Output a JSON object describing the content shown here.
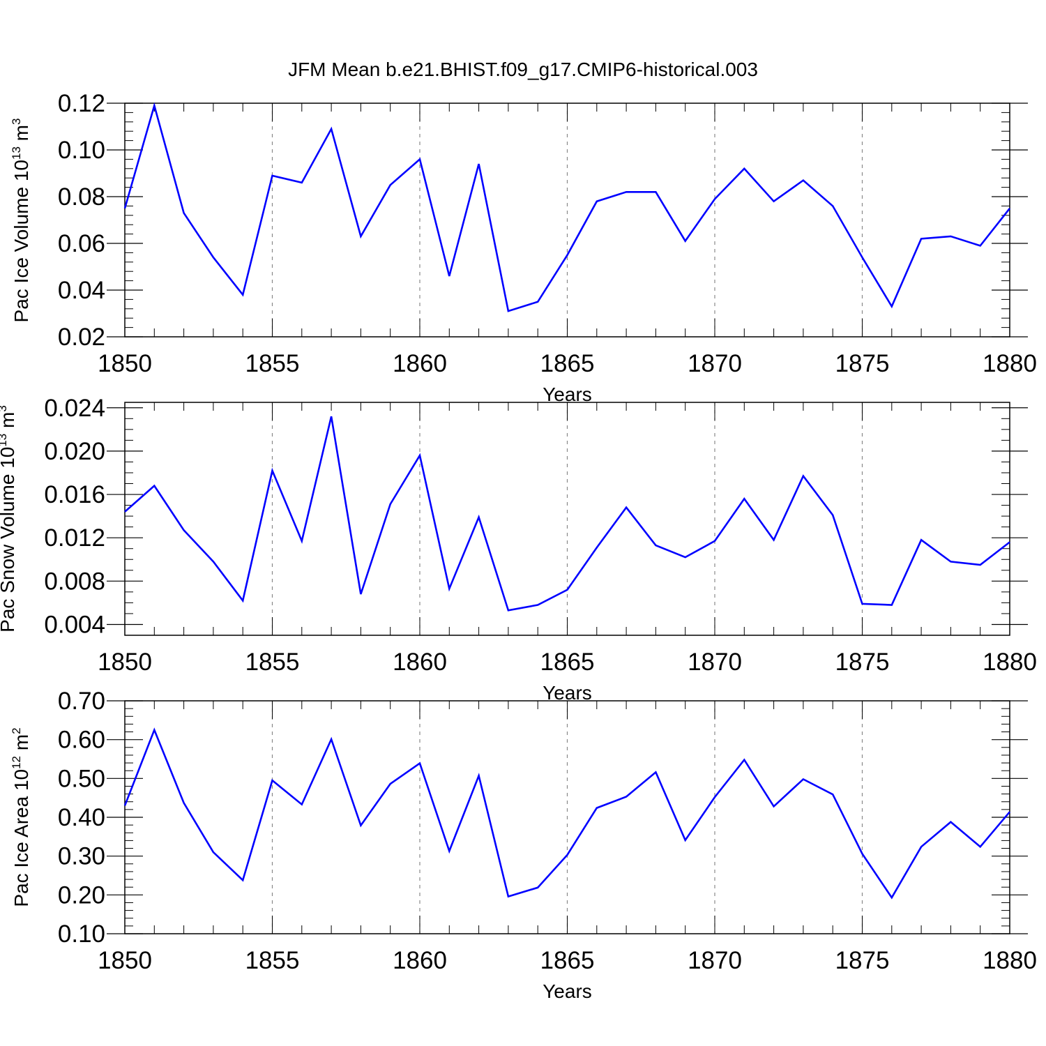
{
  "figure": {
    "title": "JFM Mean b.e21.BHIST.f09_g17.CMIP6-historical.003"
  },
  "style": {
    "line_color": "#0000ff",
    "axis_color": "#000000",
    "grid_color": "#888888"
  },
  "chart_data": [
    {
      "type": "line",
      "xlabel": "Years",
      "ylabel": {
        "text": "Pac Ice Volume 10",
        "sup1": "13",
        "unit": " m",
        "sup2": "3"
      },
      "xlim": [
        1850,
        1880
      ],
      "ylim": [
        0.02,
        0.12
      ],
      "x_ticks": [
        1850,
        1855,
        1860,
        1865,
        1870,
        1875,
        1880
      ],
      "x_tick_labels": [
        "1850",
        "1855",
        "1860",
        "1865",
        "1870",
        "1875",
        "1880"
      ],
      "y_ticks": [
        0.02,
        0.04,
        0.06,
        0.08,
        0.1,
        0.12
      ],
      "y_tick_labels": [
        "0.02",
        "0.04",
        "0.06",
        "0.08",
        "0.10",
        "0.12"
      ],
      "y_minor_step": 0.004,
      "grid": "x-dashed",
      "x": [
        1850,
        1851,
        1852,
        1853,
        1854,
        1855,
        1856,
        1857,
        1858,
        1859,
        1860,
        1861,
        1862,
        1863,
        1864,
        1865,
        1866,
        1867,
        1868,
        1869,
        1870,
        1871,
        1872,
        1873,
        1874,
        1875,
        1876,
        1877,
        1878,
        1879,
        1880
      ],
      "series": [
        {
          "values": [
            0.075,
            0.119,
            0.073,
            0.054,
            0.038,
            0.089,
            0.086,
            0.109,
            0.063,
            0.085,
            0.096,
            0.046,
            0.094,
            0.031,
            0.035,
            0.055,
            0.078,
            0.082,
            0.082,
            0.061,
            0.079,
            0.092,
            0.078,
            0.087,
            0.076,
            0.054,
            0.033,
            0.062,
            0.063,
            0.059,
            0.075
          ]
        }
      ]
    },
    {
      "type": "line",
      "xlabel": "Years",
      "ylabel": {
        "text": "Pac Snow Volume 10",
        "sup1": "13",
        "unit": " m",
        "sup2": "3"
      },
      "xlim": [
        1850,
        1880
      ],
      "ylim": [
        0.003,
        0.0245
      ],
      "x_ticks": [
        1850,
        1855,
        1860,
        1865,
        1870,
        1875,
        1880
      ],
      "x_tick_labels": [
        "1850",
        "1855",
        "1860",
        "1865",
        "1870",
        "1875",
        "1880"
      ],
      "y_ticks": [
        0.004,
        0.008,
        0.012,
        0.016,
        0.02,
        0.024
      ],
      "y_tick_labels": [
        "0.004",
        "0.008",
        "0.012",
        "0.016",
        "0.020",
        "0.024"
      ],
      "y_minor_step": 0.001,
      "grid": "x-dashed",
      "x": [
        1850,
        1851,
        1852,
        1853,
        1854,
        1855,
        1856,
        1857,
        1858,
        1859,
        1860,
        1861,
        1862,
        1863,
        1864,
        1865,
        1866,
        1867,
        1868,
        1869,
        1870,
        1871,
        1872,
        1873,
        1874,
        1875,
        1876,
        1877,
        1878,
        1879,
        1880
      ],
      "series": [
        {
          "values": [
            0.0144,
            0.0168,
            0.0127,
            0.0098,
            0.0062,
            0.0182,
            0.0117,
            0.0232,
            0.0068,
            0.0151,
            0.0196,
            0.0073,
            0.0139,
            0.0053,
            0.0058,
            0.0072,
            0.0111,
            0.0148,
            0.0113,
            0.0102,
            0.0117,
            0.0156,
            0.0118,
            0.0177,
            0.0141,
            0.0059,
            0.0058,
            0.0118,
            0.0098,
            0.0095,
            0.0116
          ]
        }
      ]
    },
    {
      "type": "line",
      "xlabel": "Years",
      "ylabel": {
        "text": "Pac Ice Area 10",
        "sup1": "12",
        "unit": " m",
        "sup2": "2"
      },
      "xlim": [
        1850,
        1880
      ],
      "ylim": [
        0.1,
        0.7
      ],
      "x_ticks": [
        1850,
        1855,
        1860,
        1865,
        1870,
        1875,
        1880
      ],
      "x_tick_labels": [
        "1850",
        "1855",
        "1860",
        "1865",
        "1870",
        "1875",
        "1880"
      ],
      "y_ticks": [
        0.1,
        0.2,
        0.3,
        0.4,
        0.5,
        0.6,
        0.7
      ],
      "y_tick_labels": [
        "0.10",
        "0.20",
        "0.30",
        "0.40",
        "0.50",
        "0.60",
        "0.70"
      ],
      "y_minor_step": 0.02,
      "grid": "x-dashed",
      "x": [
        1850,
        1851,
        1852,
        1853,
        1854,
        1855,
        1856,
        1857,
        1858,
        1859,
        1860,
        1861,
        1862,
        1863,
        1864,
        1865,
        1866,
        1867,
        1868,
        1869,
        1870,
        1871,
        1872,
        1873,
        1874,
        1875,
        1876,
        1877,
        1878,
        1879,
        1880
      ],
      "series": [
        {
          "values": [
            0.43,
            0.625,
            0.437,
            0.31,
            0.238,
            0.495,
            0.433,
            0.601,
            0.379,
            0.486,
            0.539,
            0.313,
            0.507,
            0.196,
            0.219,
            0.303,
            0.424,
            0.453,
            0.516,
            0.341,
            0.452,
            0.548,
            0.428,
            0.498,
            0.459,
            0.306,
            0.193,
            0.324,
            0.388,
            0.324,
            0.414
          ]
        }
      ]
    }
  ]
}
